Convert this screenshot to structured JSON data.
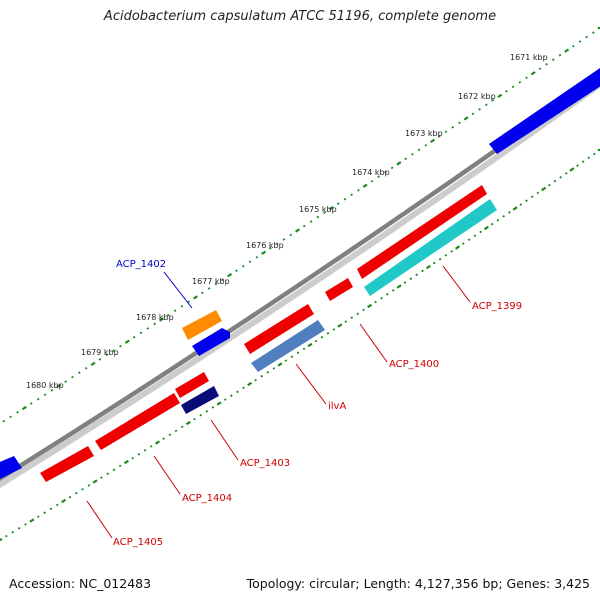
{
  "title": "Acidobacterium capsulatum ATCC 51196, complete genome",
  "footer": {
    "accession": "Accession: NC_012483",
    "topology": "Topology: circular; Length: 4,127,356 bp; Genes: 3,425"
  },
  "scale_ticks": [
    "1671 kbp",
    "1672 kbp",
    "1673 kbp",
    "1674 kbp",
    "1675 kbp",
    "1676 kbp",
    "1677 kbp",
    "1678 kbp",
    "1679 kbp",
    "1680 kbp"
  ],
  "gene_labels": {
    "acp1402": "ACP_1402",
    "acp1399": "ACP_1399",
    "acp1400": "ACP_1400",
    "ilva": "ilvA",
    "acp1403": "ACP_1403",
    "acp1404": "ACP_1404",
    "acp1405": "ACP_1405"
  },
  "colors": {
    "backbone": "#808080",
    "tick_dots": "#1b8a1b",
    "forward_gene": "#0000ee",
    "reverse_gene": "#ee0000",
    "label_blue": "#0000cc",
    "label_red": "#cc0000",
    "orange_gene": "#ff8c00",
    "cyan_gene": "#20c8c8",
    "steel_gene": "#4f7fbf",
    "navy_gene": "#0a0a78"
  }
}
